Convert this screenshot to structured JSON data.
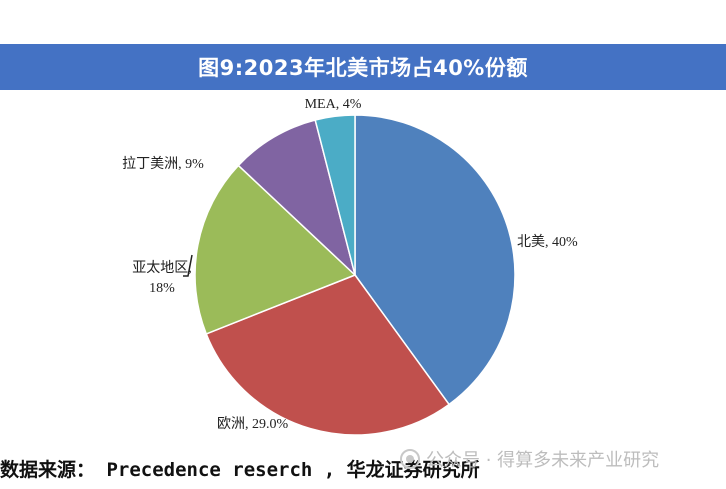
{
  "title": "图9:2023年北美市场占40%份额",
  "source": "数据来源： Precedence reserch , 华龙证券研究所",
  "watermark": "公众号 · 得算多未来产业研究",
  "chart_data": {
    "type": "pie",
    "title": "图9:2023年北美市场占40%份额",
    "slices": [
      {
        "label": "北美",
        "value": 40,
        "display": "北美, 40%",
        "color": "#4f81bd"
      },
      {
        "label": "欧洲",
        "value": 29.0,
        "display": "欧洲, 29.0%",
        "color": "#c0504d"
      },
      {
        "label": "亚太地区",
        "value": 18,
        "display": [
          "亚太地区,",
          "18%"
        ],
        "color": "#9bbb59"
      },
      {
        "label": "拉丁美洲",
        "value": 9,
        "display": "拉丁美洲, 9%",
        "color": "#8064a2"
      },
      {
        "label": "MEA",
        "value": 4,
        "display": "MEA, 4%",
        "color": "#4bacc6"
      }
    ],
    "start": "12 o'clock",
    "direction": "clockwise"
  }
}
